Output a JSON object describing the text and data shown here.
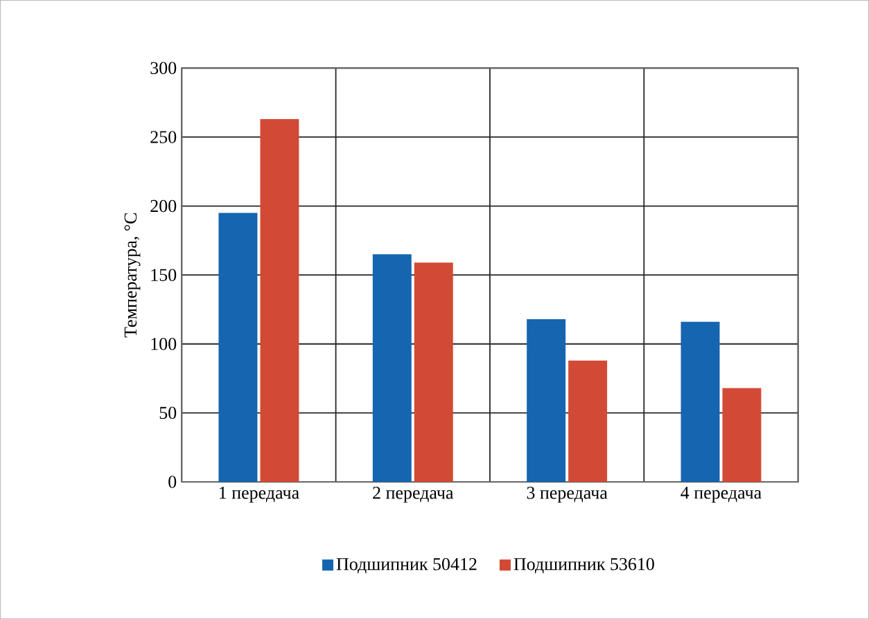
{
  "chart_data": {
    "type": "bar",
    "ylabel": "Температура, °C",
    "categories": [
      "1 передача",
      "2 передача",
      "3 передача",
      "4 передача"
    ],
    "series": [
      {
        "name": "Подшипник 50412",
        "color": "#1565b0",
        "values": [
          195,
          165,
          118,
          116
        ]
      },
      {
        "name": "Подшипник 53610",
        "color": "#d24a35",
        "values": [
          263,
          159,
          88,
          68
        ]
      }
    ],
    "ylim": [
      0,
      300
    ],
    "yticks": [
      0,
      50,
      100,
      150,
      200,
      250,
      300
    ],
    "grid": true,
    "legend": "bottom"
  }
}
